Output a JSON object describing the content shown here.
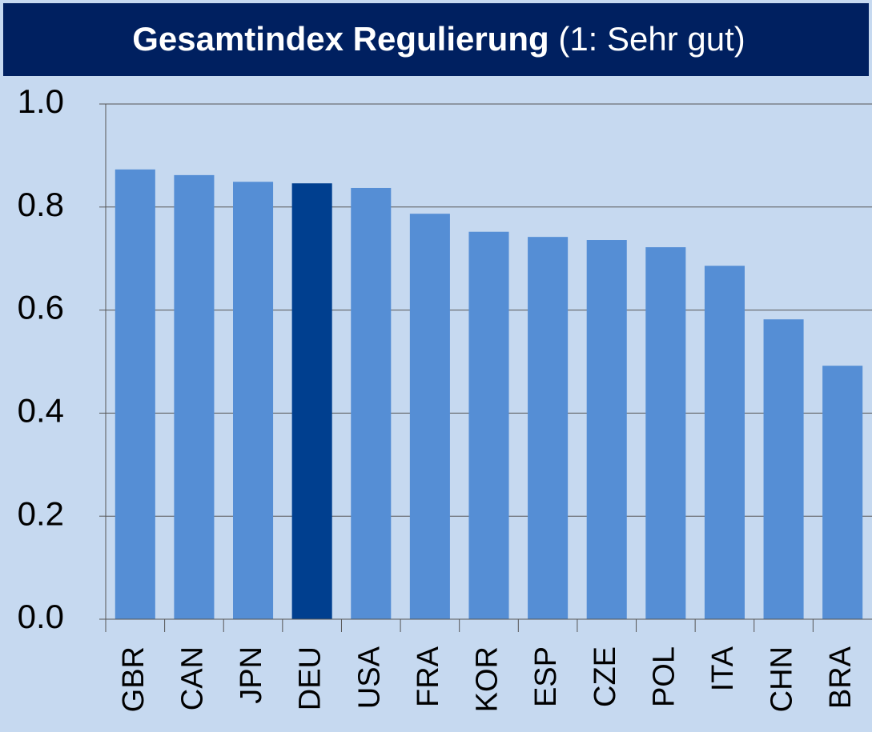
{
  "chart_data": {
    "type": "bar",
    "title": "Gesamtindex Regulierung",
    "subtitle": "(1: Sehr gut)",
    "categories": [
      "GBR",
      "CAN",
      "JPN",
      "DEU",
      "USA",
      "FRA",
      "KOR",
      "ESP",
      "CZE",
      "POL",
      "ITA",
      "CHN",
      "BRA"
    ],
    "values": [
      0.873,
      0.862,
      0.849,
      0.846,
      0.837,
      0.787,
      0.752,
      0.742,
      0.736,
      0.722,
      0.686,
      0.582,
      0.492
    ],
    "colors": [
      "#558ed5",
      "#558ed5",
      "#558ed5",
      "#003f8f",
      "#558ed5",
      "#558ed5",
      "#558ed5",
      "#558ed5",
      "#558ed5",
      "#558ed5",
      "#558ed5",
      "#558ed5",
      "#558ed5"
    ],
    "ylim": [
      0,
      1
    ],
    "yticks": [
      {
        "value": 0,
        "label": "0.0"
      },
      0.2,
      0.4,
      0.6,
      0.8,
      {
        "value": 1,
        "label": "1.0"
      }
    ],
    "grid": true
  }
}
